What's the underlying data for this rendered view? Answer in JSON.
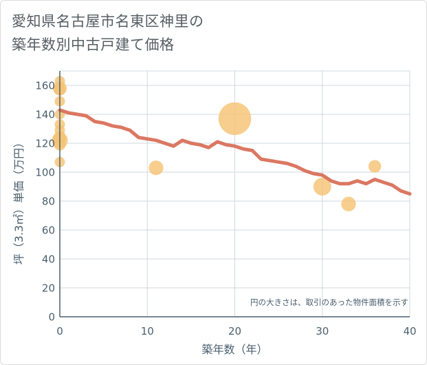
{
  "title_lines": [
    "愛知県名古屋市名東区神里の",
    "築年数別中古戸建て価格"
  ],
  "chart_data": {
    "type": "scatter",
    "xlabel": "築年数（年）",
    "ylabel": "坪（3.3㎡）単価（万円）",
    "xlim": [
      0,
      40
    ],
    "ylim": [
      0,
      170
    ],
    "x_ticks": [
      0,
      10,
      20,
      30,
      40
    ],
    "y_ticks": [
      0,
      20,
      40,
      60,
      80,
      100,
      120,
      140,
      160
    ],
    "note": "円の大きさは、取引のあった物件面積を示す",
    "colors": {
      "bubble": "#f5c272",
      "trend": "#d9705a",
      "grid": "#cfd8df",
      "axis": "#4a5f6e"
    },
    "bubbles": [
      {
        "x": 0,
        "y": 163,
        "size": 1.0
      },
      {
        "x": 0,
        "y": 158,
        "size": 1.8
      },
      {
        "x": 0,
        "y": 157,
        "size": 1.3
      },
      {
        "x": 0,
        "y": 149,
        "size": 1.0
      },
      {
        "x": 0,
        "y": 140,
        "size": 1.0
      },
      {
        "x": 0,
        "y": 133,
        "size": 1.0
      },
      {
        "x": 0,
        "y": 129,
        "size": 1.0
      },
      {
        "x": 0,
        "y": 124,
        "size": 1.5
      },
      {
        "x": 0,
        "y": 122,
        "size": 2.4
      },
      {
        "x": 0,
        "y": 119,
        "size": 1.3
      },
      {
        "x": 0,
        "y": 107,
        "size": 1.0
      },
      {
        "x": 11,
        "y": 103,
        "size": 2.0
      },
      {
        "x": 20,
        "y": 137,
        "size": 10.0
      },
      {
        "x": 30,
        "y": 90,
        "size": 3.0
      },
      {
        "x": 33,
        "y": 78,
        "size": 2.0
      },
      {
        "x": 36,
        "y": 104,
        "size": 1.5
      }
    ],
    "trend": {
      "x": [
        0,
        1,
        2,
        3,
        4,
        5,
        6,
        7,
        8,
        9,
        10,
        11,
        12,
        13,
        14,
        15,
        16,
        17,
        18,
        19,
        20,
        21,
        22,
        23,
        24,
        25,
        26,
        27,
        28,
        29,
        30,
        31,
        32,
        33,
        34,
        35,
        36,
        37,
        38,
        39,
        40
      ],
      "y": [
        143,
        141,
        140,
        139,
        135,
        134,
        132,
        131,
        129,
        124,
        123,
        122,
        120,
        118,
        122,
        120,
        119,
        117,
        121,
        119,
        118,
        116,
        115,
        109,
        108,
        107,
        106,
        104,
        101,
        99,
        98,
        94,
        92,
        92,
        94,
        92,
        95,
        93,
        91,
        87,
        85
      ]
    }
  }
}
